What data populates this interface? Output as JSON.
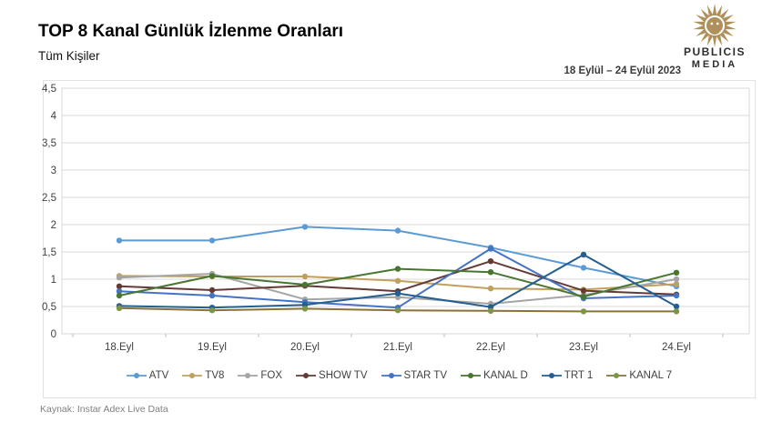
{
  "title": "TOP 8 Kanal Günlük İzlenme Oranları",
  "subtitle": "Tüm Kişiler",
  "date_range": "18 Eylül – 24 Eylül 2023",
  "logo": {
    "line1": "PUBLICIS",
    "line2": "MEDIA",
    "color": "#b0905a"
  },
  "source": "Kaynak: Instar  Adex Live Data",
  "chart_data": {
    "type": "line",
    "title": "TOP 8 Kanal Günlük İzlenme Oranları",
    "subtitle": "Tüm Kişiler",
    "categories": [
      "18.Eyl",
      "19.Eyl",
      "20.Eyl",
      "21.Eyl",
      "22.Eyl",
      "23.Eyl",
      "24.Eyl"
    ],
    "series": [
      {
        "name": "ATV",
        "color": "#5B9BD5",
        "values": [
          1.71,
          1.71,
          1.96,
          1.89,
          1.58,
          1.21,
          0.87
        ]
      },
      {
        "name": "TV8",
        "color": "#C0A05E",
        "values": [
          1.06,
          1.05,
          1.05,
          0.97,
          0.83,
          0.81,
          0.91
        ]
      },
      {
        "name": "FOX",
        "color": "#A5A5A5",
        "values": [
          1.03,
          1.1,
          0.63,
          0.67,
          0.55,
          0.71,
          1.0
        ]
      },
      {
        "name": "SHOW TV",
        "color": "#653A35",
        "values": [
          0.87,
          0.8,
          0.88,
          0.78,
          1.33,
          0.79,
          0.72
        ]
      },
      {
        "name": "STAR TV",
        "color": "#4472C4",
        "values": [
          0.78,
          0.7,
          0.58,
          0.48,
          1.56,
          0.65,
          0.7
        ]
      },
      {
        "name": "KANAL D",
        "color": "#48752F",
        "values": [
          0.7,
          1.06,
          0.9,
          1.19,
          1.13,
          0.68,
          1.12
        ]
      },
      {
        "name": "TRT 1",
        "color": "#255E91",
        "values": [
          0.51,
          0.48,
          0.53,
          0.74,
          0.49,
          1.45,
          0.5
        ]
      },
      {
        "name": "KANAL 7",
        "color": "#8A7239",
        "marker_color": "#7C9643",
        "values": [
          0.47,
          0.43,
          0.46,
          0.43,
          0.42,
          0.41,
          0.41
        ]
      }
    ],
    "ylim": [
      0,
      4.5
    ],
    "ytick_step": 0.5,
    "ytick_labels": [
      "0",
      "0,5",
      "1",
      "1,5",
      "2",
      "2,5",
      "3",
      "3,5",
      "4",
      "4,5"
    ],
    "grid": true,
    "legend_position": "bottom"
  }
}
